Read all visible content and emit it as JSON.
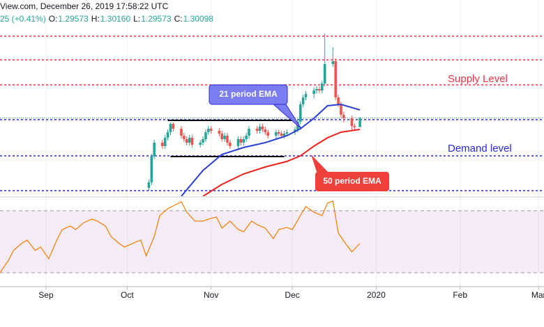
{
  "chart_data": [
    {
      "type": "candlestick",
      "title": "View.com, December 26, 2019 17:58:22 UTC",
      "quote": [
        {
          "label": "25 (+0.41%)",
          "value": ""
        }
      ],
      "ohlc": [
        {
          "label": "O:",
          "value": "1.29573"
        },
        {
          "label": "H:",
          "value": "1.30160"
        },
        {
          "label": "L:",
          "value": "1.29573"
        },
        {
          "label": "C:",
          "value": "1.30098"
        }
      ],
      "x": [
        38,
        39,
        40,
        43,
        44,
        45,
        46,
        47,
        50,
        51,
        52,
        53,
        54,
        57,
        58,
        59,
        60,
        61,
        64,
        65,
        66,
        67,
        68,
        71,
        72,
        73,
        74,
        75,
        78,
        79,
        80,
        81,
        82,
        85,
        86,
        87,
        88,
        89,
        92,
        93,
        94,
        95,
        96,
        99,
        100,
        101,
        102,
        103,
        106,
        107,
        108,
        109,
        110,
        113,
        114,
        116
      ],
      "open": [
        1.2608,
        1.264,
        1.2788,
        1.2868,
        1.2848,
        1.2896,
        1.2928,
        1.2976,
        1.2948,
        1.2908,
        1.2888,
        1.2868,
        1.2896,
        1.2856,
        1.2868,
        1.2888,
        1.2928,
        1.2948,
        1.2936,
        1.292,
        1.2888,
        1.2908,
        1.2868,
        1.2848,
        1.2888,
        1.2868,
        1.2888,
        1.2908,
        1.2948,
        1.2936,
        1.296,
        1.2944,
        1.2928,
        1.2908,
        1.2928,
        1.292,
        1.2908,
        1.292,
        1.2928,
        1.2944,
        1.2988,
        1.3088,
        1.3128,
        1.3148,
        1.3168,
        1.3176,
        1.3168,
        1.3208,
        1.332,
        1.3336,
        1.3128,
        1.3088,
        1.3028,
        1.3008,
        1.2964,
        1.29573
      ],
      "high": [
        1.2656,
        1.2804,
        1.2884,
        1.2884,
        1.2912,
        1.2944,
        1.2984,
        1.2984,
        1.2964,
        1.2924,
        1.2904,
        1.2912,
        1.2912,
        1.2884,
        1.2904,
        1.2944,
        1.2964,
        1.2964,
        1.2952,
        1.2936,
        1.2924,
        1.2924,
        1.2884,
        1.2904,
        1.2904,
        1.2904,
        1.2924,
        1.2964,
        1.2964,
        1.2976,
        1.2976,
        1.296,
        1.2944,
        1.2944,
        1.2944,
        1.2936,
        1.2936,
        1.2944,
        1.296,
        1.3004,
        1.3104,
        1.3144,
        1.3164,
        1.3184,
        1.3192,
        1.3192,
        1.3224,
        1.3496,
        1.3416,
        1.3352,
        1.3144,
        1.3104,
        1.3044,
        1.3024,
        1.2976,
        1.3016
      ],
      "low": [
        1.2592,
        1.2624,
        1.2772,
        1.2832,
        1.2832,
        1.288,
        1.2912,
        1.2932,
        1.2892,
        1.2872,
        1.2852,
        1.2852,
        1.284,
        1.284,
        1.2852,
        1.2872,
        1.2912,
        1.292,
        1.2904,
        1.2872,
        1.2872,
        1.2852,
        1.2832,
        1.2832,
        1.2852,
        1.2852,
        1.2872,
        1.2892,
        1.292,
        1.292,
        1.2928,
        1.2912,
        1.2892,
        1.2892,
        1.2904,
        1.2892,
        1.2892,
        1.2904,
        1.2912,
        1.2928,
        1.2972,
        1.3072,
        1.3112,
        1.3124,
        1.3152,
        1.3152,
        1.3152,
        1.3192,
        1.3304,
        1.3112,
        1.3072,
        1.3012,
        1.2984,
        1.294,
        1.294,
        1.29573
      ],
      "close": [
        1.264,
        1.2788,
        1.2868,
        1.2848,
        1.2896,
        1.2928,
        1.2976,
        1.2948,
        1.2908,
        1.2888,
        1.2868,
        1.2896,
        1.2856,
        1.2868,
        1.2888,
        1.2928,
        1.2948,
        1.2936,
        1.292,
        1.2888,
        1.2908,
        1.2868,
        1.2848,
        1.2888,
        1.2868,
        1.2888,
        1.2908,
        1.2948,
        1.2936,
        1.296,
        1.2944,
        1.2928,
        1.2908,
        1.2928,
        1.292,
        1.2908,
        1.292,
        1.2928,
        1.2944,
        1.2988,
        1.3088,
        1.3128,
        1.3148,
        1.3168,
        1.3176,
        1.3168,
        1.3208,
        1.332,
        1.3336,
        1.3128,
        1.3088,
        1.3028,
        1.3008,
        1.2964,
        1.2957,
        1.30098
      ],
      "up_color": "#26a69a",
      "down_color": "#ef5350",
      "series": [
        {
          "name": "21 period EMA",
          "color": "#2a3fd6",
          "x": [
            50,
            58,
            65,
            73,
            81,
            89,
            94,
            99,
            104,
            109,
            116
          ],
          "values": [
            1.256,
            1.2708,
            1.28,
            1.284,
            1.2868,
            1.2908,
            1.2948,
            1.3008,
            1.308,
            1.3088,
            1.3056
          ]
        },
        {
          "name": "50 period EMA",
          "color": "#f0201c",
          "x": [
            58,
            65,
            73,
            81,
            89,
            94,
            99,
            104,
            109,
            116
          ],
          "values": [
            1.256,
            1.2628,
            1.2688,
            1.2728,
            1.276,
            1.2792,
            1.2848,
            1.2896,
            1.2928,
            1.2944
          ]
        }
      ],
      "levels": [
        {
          "name": "Supply Level",
          "color": "#f23645",
          "values": [
            1.348,
            1.3344,
            1.32
          ]
        },
        {
          "name": "Demand level",
          "color": "#2a2ad8",
          "values": [
            1.3,
            1.2792,
            1.2592
          ]
        }
      ],
      "ranges": [
        {
          "value": 1.2996,
          "x": [
            45,
            91
          ]
        },
        {
          "value": 1.2788,
          "x": [
            46,
            88
          ]
        }
      ],
      "xlim": [
        -17,
        184
      ],
      "ylim": [
        1.256,
        1.3688
      ]
    },
    {
      "type": "line",
      "x": [
        -17,
        -14,
        -12,
        -9,
        -7,
        -4,
        -2,
        1,
        4,
        6,
        9,
        11,
        14,
        17,
        19,
        22,
        24,
        27,
        29,
        32,
        35,
        37,
        40,
        42,
        45,
        47,
        50,
        52,
        55,
        58,
        60,
        63,
        65,
        68,
        71,
        73,
        76,
        78,
        81,
        84,
        86,
        89,
        91,
        94,
        96,
        99,
        102,
        104,
        106,
        108,
        111,
        113,
        116
      ],
      "values": [
        30,
        37.6,
        44.4,
        48.9,
        51.1,
        44.4,
        46.6,
        39.0,
        51.1,
        57.9,
        60.1,
        57.9,
        62.4,
        64.6,
        63.3,
        60.1,
        53.4,
        48.9,
        46.6,
        48.9,
        51.1,
        40.8,
        53.4,
        66.9,
        71.3,
        73.1,
        75.8,
        69.1,
        63.3,
        63.3,
        64.6,
        66.0,
        58.8,
        63.3,
        57.9,
        56.5,
        63.3,
        61.0,
        58.8,
        52.0,
        57.9,
        59.2,
        57.9,
        66.9,
        72.7,
        69.1,
        66.9,
        74.9,
        76.3,
        55.6,
        48.0,
        43.5,
        48.9
      ],
      "color": "#f57c00",
      "band": [
        70,
        30
      ],
      "band_color": "rgba(156,39,176,0.09)",
      "xlim": [
        -17,
        184
      ],
      "ylim": [
        21,
        78.5
      ],
      "xticks": [
        {
          "value": 0,
          "label": "Sep"
        },
        {
          "value": 30,
          "label": "Oct"
        },
        {
          "value": 61,
          "label": "Nov"
        },
        {
          "value": 91,
          "label": "Dec"
        },
        {
          "value": 122,
          "label": "2020"
        },
        {
          "value": 153,
          "label": "Feb"
        },
        {
          "value": 182,
          "label": "Mar"
        }
      ]
    }
  ]
}
